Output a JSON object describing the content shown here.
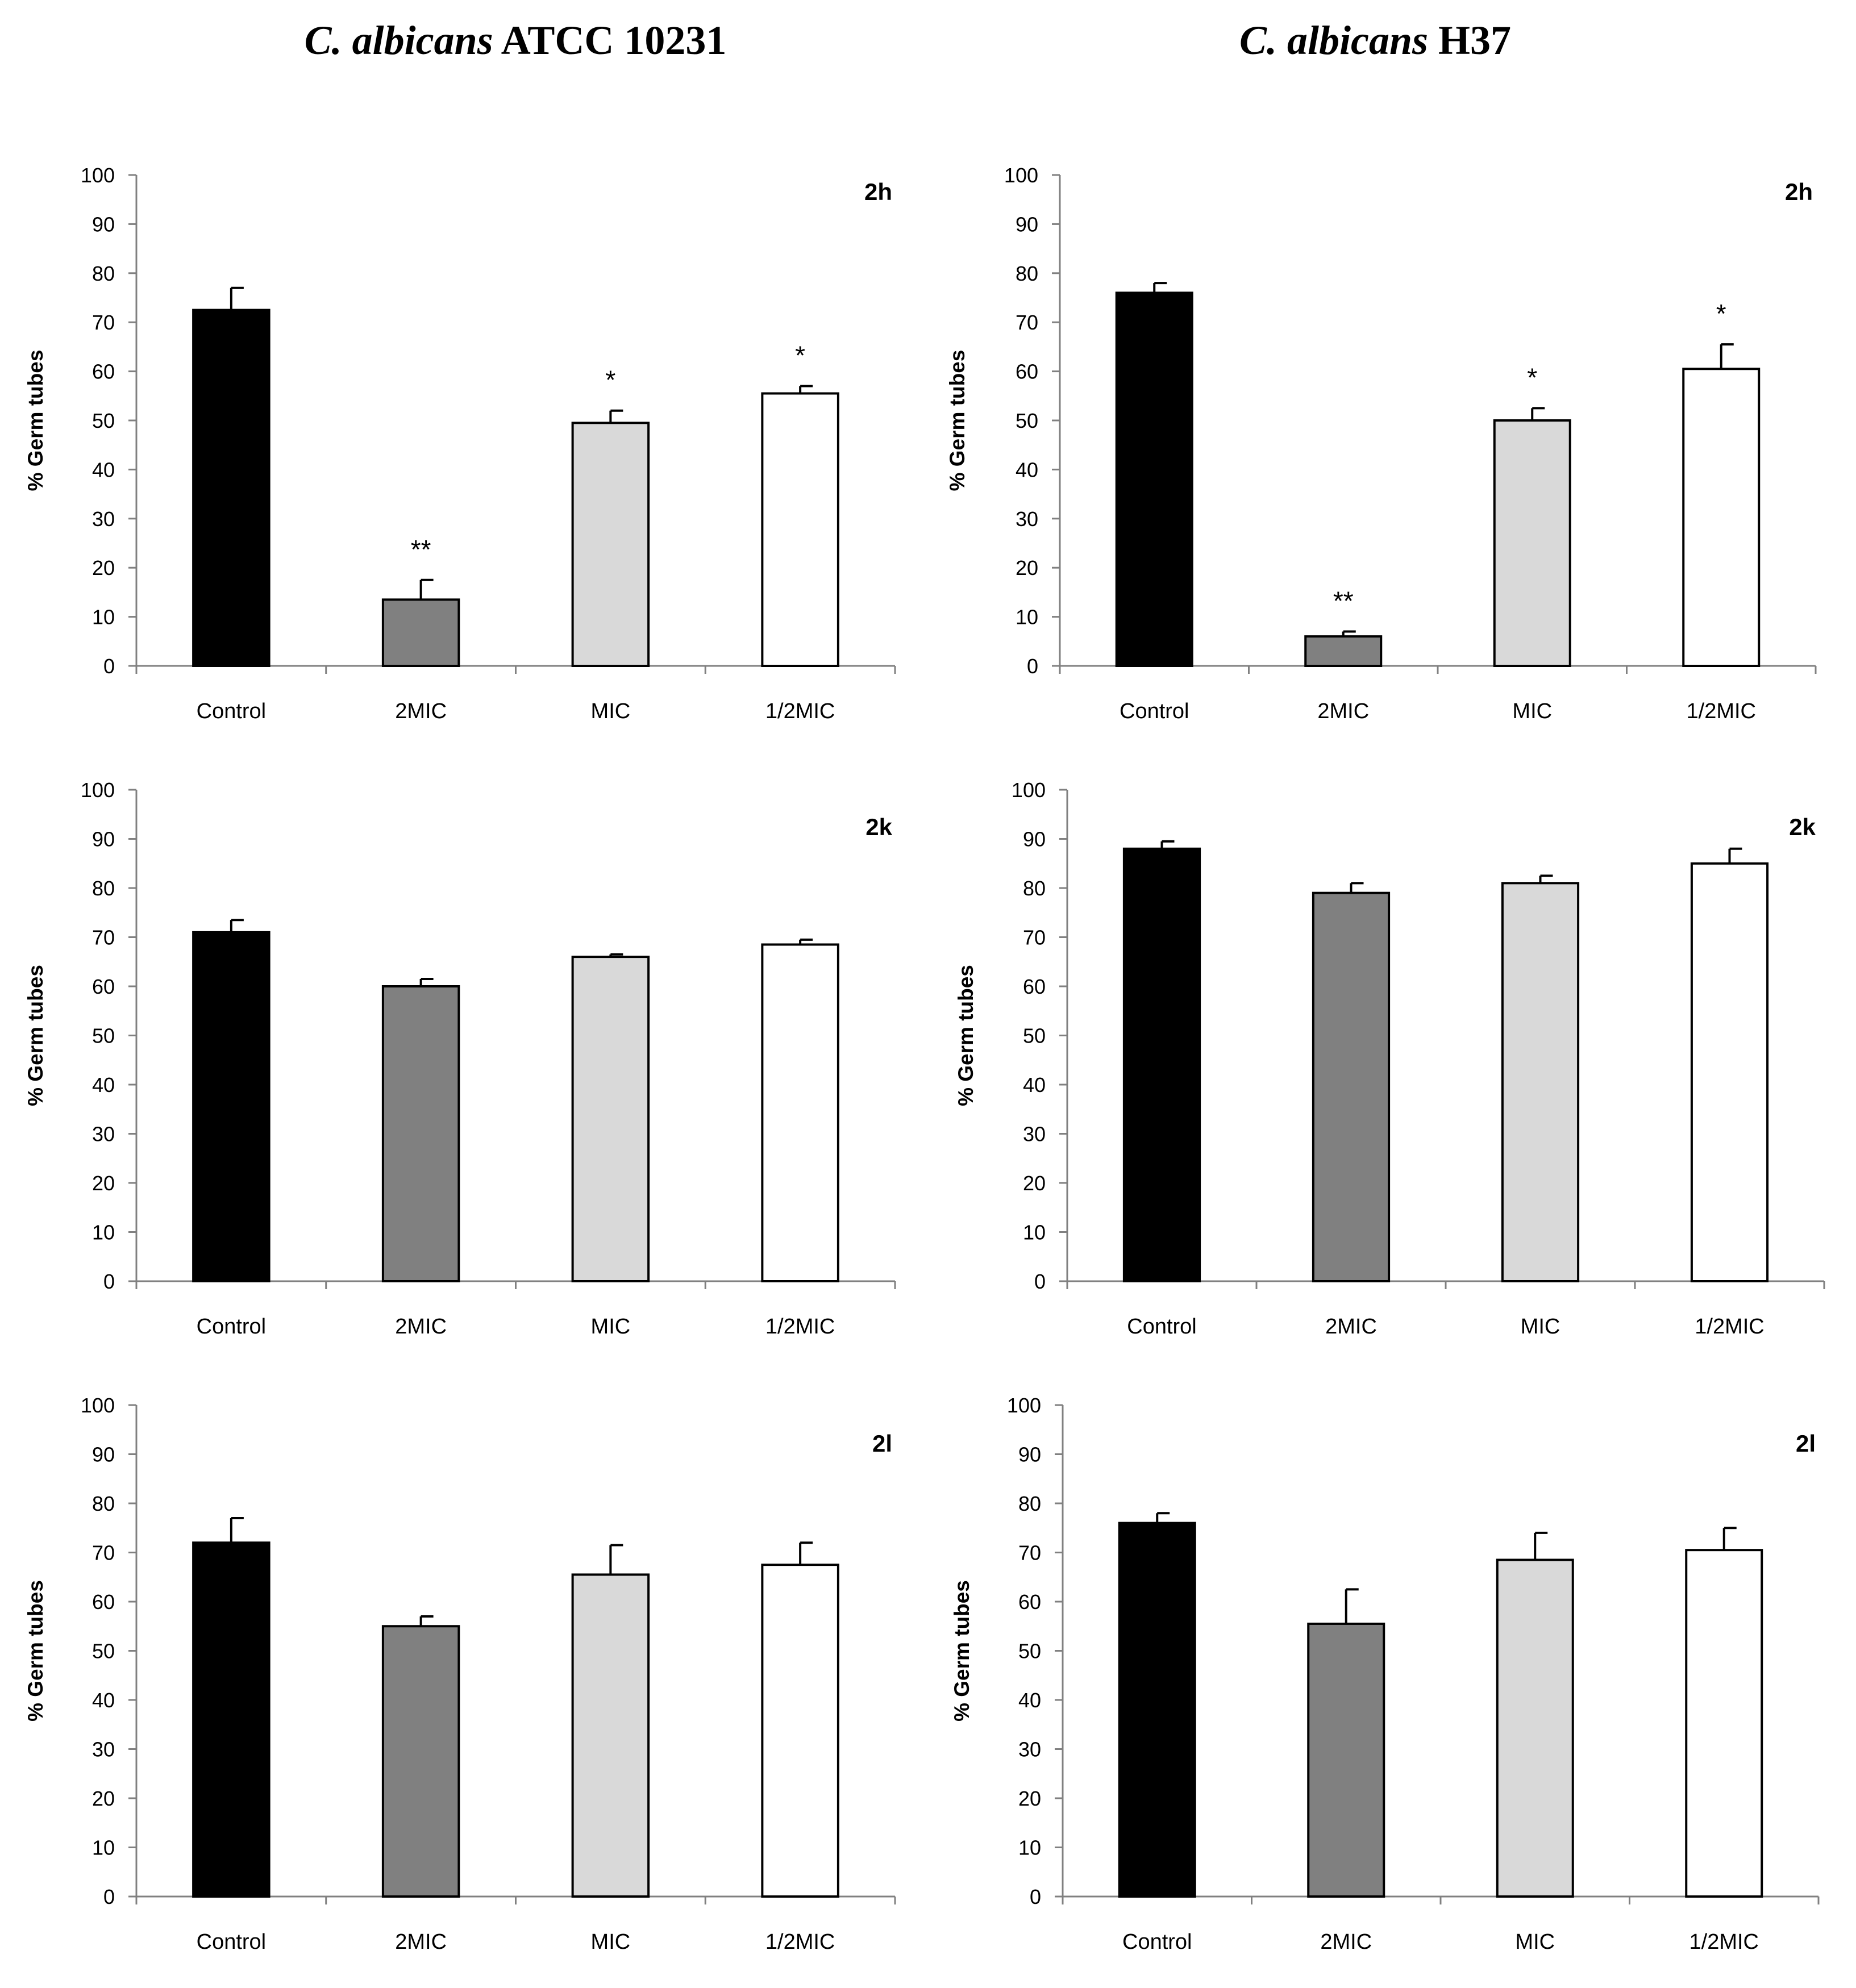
{
  "titles": [
    {
      "italic": "C. albicans",
      "rest": " ATCC 10231"
    },
    {
      "italic": "C. albicans",
      "rest": " H37"
    }
  ],
  "colors": {
    "Control": "#000000",
    "2MIC": "#808080",
    "MIC": "#d9d9d9",
    "1/2MIC": "#ffffff"
  },
  "chart_data": [
    {
      "type": "bar",
      "strain": "C. albicans ATCC 10231",
      "label": "2h",
      "ylabel": "% Germ tubes",
      "ylim": [
        0,
        100
      ],
      "yticks": [
        0,
        10,
        20,
        30,
        40,
        50,
        60,
        70,
        80,
        90,
        100
      ],
      "categories": [
        "Control",
        "2MIC",
        "MIC",
        "1/2MIC"
      ],
      "values": [
        72.5,
        13.5,
        49.5,
        55.5
      ],
      "errors": [
        4.5,
        4,
        2.5,
        1.5
      ],
      "significance": [
        "",
        "**",
        "*",
        "*"
      ]
    },
    {
      "type": "bar",
      "strain": "C. albicans H37",
      "label": "2h",
      "ylabel": "% Germ tubes",
      "ylim": [
        0,
        100
      ],
      "yticks": [
        0,
        10,
        20,
        30,
        40,
        50,
        60,
        70,
        80,
        90,
        100
      ],
      "categories": [
        "Control",
        "2MIC",
        "MIC",
        "1/2MIC"
      ],
      "values": [
        76,
        6,
        50,
        60.5
      ],
      "errors": [
        2,
        1,
        2.5,
        5
      ],
      "significance": [
        "",
        "**",
        "*",
        "*"
      ]
    },
    {
      "type": "bar",
      "strain": "C. albicans ATCC 10231",
      "label": "2k",
      "ylabel": "% Germ tubes",
      "ylim": [
        0,
        100
      ],
      "yticks": [
        0,
        10,
        20,
        30,
        40,
        50,
        60,
        70,
        80,
        90,
        100
      ],
      "categories": [
        "Control",
        "2MIC",
        "MIC",
        "1/2MIC"
      ],
      "values": [
        71,
        60,
        66,
        68.5
      ],
      "errors": [
        2.5,
        1.5,
        0.5,
        1
      ],
      "significance": [
        "",
        "",
        "",
        ""
      ]
    },
    {
      "type": "bar",
      "strain": "C. albicans H37",
      "label": "2k",
      "ylabel": "% Germ tubes",
      "ylim": [
        0,
        100
      ],
      "yticks": [
        0,
        10,
        20,
        30,
        40,
        50,
        60,
        70,
        80,
        90,
        100
      ],
      "categories": [
        "Control",
        "2MIC",
        "MIC",
        "1/2MIC"
      ],
      "values": [
        88,
        79,
        81,
        85
      ],
      "errors": [
        1.5,
        2,
        1.5,
        3
      ],
      "significance": [
        "",
        "",
        "",
        ""
      ]
    },
    {
      "type": "bar",
      "strain": "C. albicans ATCC 10231",
      "label": "2l",
      "ylabel": "% Germ tubes",
      "ylim": [
        0,
        100
      ],
      "yticks": [
        0,
        10,
        20,
        30,
        40,
        50,
        60,
        70,
        80,
        90,
        100
      ],
      "categories": [
        "Control",
        "2MIC",
        "MIC",
        "1/2MIC"
      ],
      "values": [
        72,
        55,
        65.5,
        67.5
      ],
      "errors": [
        5,
        2,
        6,
        4.5
      ],
      "significance": [
        "",
        "",
        "",
        ""
      ]
    },
    {
      "type": "bar",
      "strain": "C. albicans H37",
      "label": "2l",
      "ylabel": "% Germ tubes",
      "ylim": [
        0,
        100
      ],
      "yticks": [
        0,
        10,
        20,
        30,
        40,
        50,
        60,
        70,
        80,
        90,
        100
      ],
      "categories": [
        "Control",
        "2MIC",
        "MIC",
        "1/2MIC"
      ],
      "values": [
        76,
        55.5,
        68.5,
        70.5
      ],
      "errors": [
        2,
        7,
        5.5,
        4.5
      ],
      "significance": [
        "",
        "",
        "",
        ""
      ]
    }
  ]
}
